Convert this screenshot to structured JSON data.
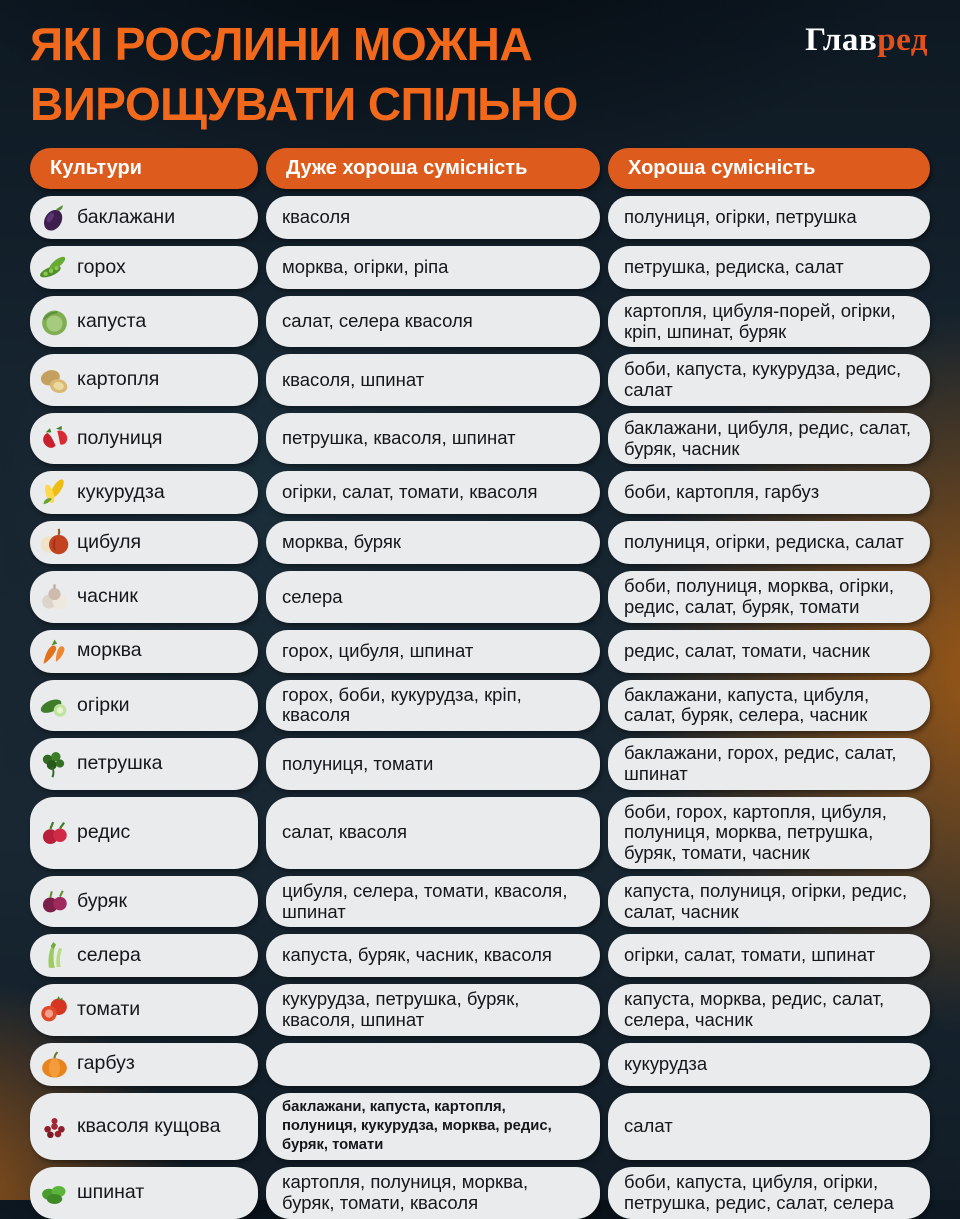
{
  "theme": {
    "page_bg": "#15222d",
    "accent_orange": "#dd5b1c",
    "title_orange": "#f2691c",
    "logo_accent": "#e2511c",
    "pill_bg": "#e9ebec",
    "text_dark": "#15181b"
  },
  "header": {
    "title_line1": "ЯКІ РОСЛИНИ МОЖНА",
    "title_line2": "ВИРОЩУВАТИ СПІЛЬНО",
    "logo_part1": "Глав",
    "logo_part2": "ред"
  },
  "table": {
    "columns": [
      "Культури",
      "Дуже хороша сумісність",
      "Хороша сумісність"
    ],
    "rows": [
      {
        "icon": "eggplant-icon",
        "crop": "баклажани",
        "very_good": "квасоля",
        "good": "полуниця, огірки, петрушка"
      },
      {
        "icon": "peas-icon",
        "crop": "горох",
        "very_good": "морква, огірки, ріпа",
        "good": "петрушка, редиска, салат"
      },
      {
        "icon": "cabbage-icon",
        "crop": "капуста",
        "very_good": "салат, селера квасоля",
        "good": "картопля, цибуля-порей, огірки, кріп, шпинат, буряк"
      },
      {
        "icon": "potato-icon",
        "crop": "картопля",
        "very_good": "квасоля, шпинат",
        "good": "боби, капуста, кукурудза, редис, салат"
      },
      {
        "icon": "strawberry-icon",
        "crop": "полуниця",
        "very_good": "петрушка, квасоля, шпинат",
        "good": "баклажани, цибуля, редис, салат, буряк, часник"
      },
      {
        "icon": "corn-icon",
        "crop": "кукурудза",
        "very_good": "огірки, салат, томати, квасоля",
        "good": "боби, картопля, гарбуз"
      },
      {
        "icon": "onion-icon",
        "crop": "цибуля",
        "very_good": "морква, буряк",
        "good": "полуниця, огірки, редиска, салат"
      },
      {
        "icon": "garlic-icon",
        "crop": "часник",
        "very_good": "селера",
        "good": "боби, полуниця, морква, огірки, редис, салат, буряк, томати"
      },
      {
        "icon": "carrot-icon",
        "crop": "морква",
        "very_good": "горох, цибуля, шпинат",
        "good": "редис, салат, томати, часник"
      },
      {
        "icon": "cucumber-icon",
        "crop": "огірки",
        "very_good": "горох, боби, кукурудза, кріп, квасоля",
        "good": "баклажани, капуста, цибуля, салат, буряк, селера, часник"
      },
      {
        "icon": "parsley-icon",
        "crop": "петрушка",
        "very_good": "полуниця, томати",
        "good": "баклажани, горох, редис, салат, шпинат"
      },
      {
        "icon": "radish-icon",
        "crop": "редис",
        "very_good": "салат, квасоля",
        "good": "боби, горох, картопля, цибуля, полуниця, морква, петрушка, буряк, томати, часник"
      },
      {
        "icon": "beet-icon",
        "crop": "буряк",
        "very_good": "цибуля, селера, томати, квасоля, шпинат",
        "good": "капуста, полуниця, огірки, редис, салат, часник"
      },
      {
        "icon": "celery-icon",
        "crop": "селера",
        "very_good": "капуста, буряк, часник, квасоля",
        "good": "огірки, салат, томати, шпинат"
      },
      {
        "icon": "tomato-icon",
        "crop": "томати",
        "very_good": "кукурудза, петрушка, буряк, квасоля, шпинат",
        "good": "капуста, морква, редис, салат, селера, часник"
      },
      {
        "icon": "pumpkin-icon",
        "crop": "гарбуз",
        "very_good": "",
        "good": "кукурудза"
      },
      {
        "icon": "beans-icon",
        "crop": "квасоля кущова",
        "very_good": "баклажани, капуста, картопля, полуниця, кукурудза, морква, редис, буряк, томати",
        "very_good_small": true,
        "good": "салат"
      },
      {
        "icon": "spinach-icon",
        "crop": "шпинат",
        "very_good": "картопля, полуниця, морква, буряк, томати, квасоля",
        "good": "боби, капуста, цибуля, огірки, петрушка, редис, салат, селера"
      }
    ]
  }
}
